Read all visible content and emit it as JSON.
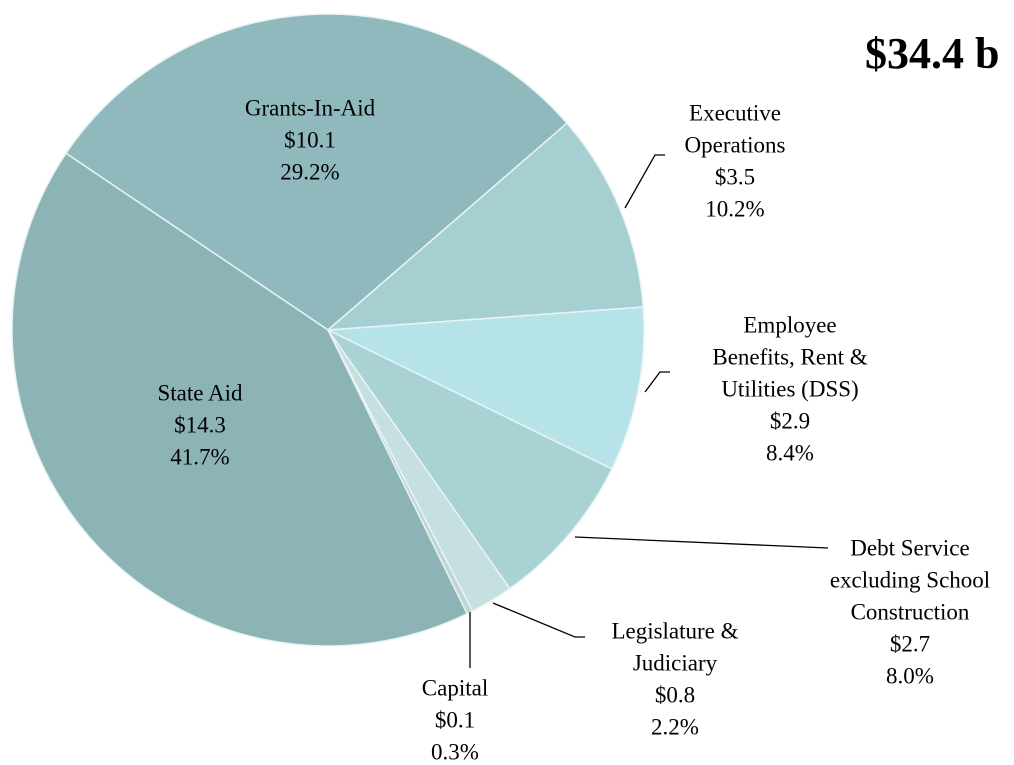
{
  "chart_data": {
    "type": "pie",
    "title": "$34.4 b",
    "categories": [
      [
        "Grants-In-Aid"
      ],
      [
        "Executive",
        "Operations"
      ],
      [
        "Employee",
        "Benefits, Rent &",
        "Utilities (DSS)"
      ],
      [
        "Debt Service",
        "excluding School",
        "Construction"
      ],
      [
        "Legislature &",
        "Judiciary"
      ],
      [
        "Capital"
      ],
      [
        "State Aid"
      ]
    ],
    "values": [
      29.2,
      10.2,
      8.4,
      8.0,
      2.2,
      0.3,
      41.7
    ],
    "value_labels": [
      "29.2%",
      "10.2%",
      "8.4%",
      "8.0%",
      "2.2%",
      "0.3%",
      "41.7%"
    ],
    "amounts": [
      10.1,
      3.5,
      2.9,
      2.7,
      0.8,
      0.1,
      14.3
    ],
    "amount_labels": [
      "$10.1",
      "$3.5",
      "$2.9",
      "$2.7",
      "$0.8",
      "$0.1",
      "$14.3"
    ],
    "colors": [
      "#8fb9bc",
      "#a6cfd2",
      "#b6e3e7",
      "#a9d2d5",
      "#c6e0e2",
      "#bed6d6",
      "#8cb4b7"
    ]
  }
}
